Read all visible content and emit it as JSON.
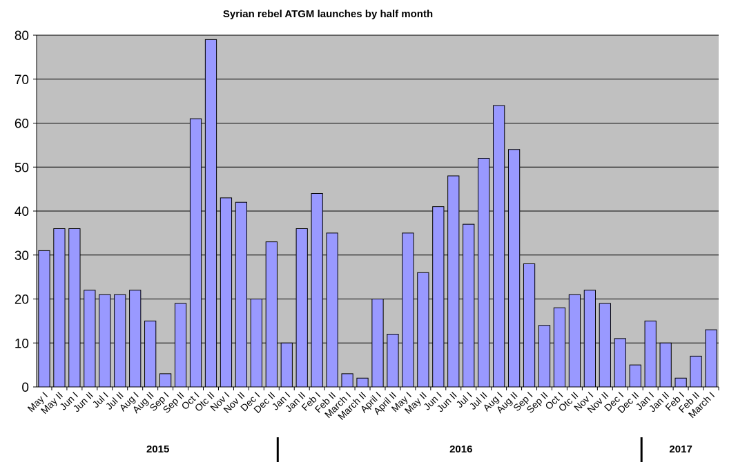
{
  "chart_data": {
    "type": "bar",
    "title": "Syrian rebel ATGM launches by half month",
    "xlabel": "",
    "ylabel": "",
    "ylim": [
      0,
      80
    ],
    "yticks": [
      0,
      10,
      20,
      30,
      40,
      50,
      60,
      70,
      80
    ],
    "grid": true,
    "colors": {
      "bar": "#9999ff",
      "plot_bg": "#c0c0c0",
      "bar_edge": "#000000"
    },
    "categories": [
      "May I",
      "May II",
      "Jun I",
      "Jun II",
      "Jul I",
      "Jul II",
      "Aug I",
      "Aug II",
      "Sep I",
      "Sep II",
      "Oct I",
      "Otc II",
      "Nov I",
      "Nov II",
      "Dec I",
      "Dec II",
      "Jan I",
      "Jan II",
      "Feb I",
      "Feb II",
      "March I",
      "March II",
      "April I",
      "April II",
      "May I",
      "May II",
      "Jun I",
      "Jun II",
      "Jul I",
      "Jul II",
      "Aug I",
      "Aug II",
      "Sep I",
      "Sep II",
      "Oct I",
      "Otc II",
      "Nov I",
      "Nov II",
      "Dec I",
      "Dec II",
      "Jan I",
      "Jan II",
      "Feb I",
      "Feb II",
      "March I"
    ],
    "values": [
      31,
      36,
      36,
      22,
      21,
      21,
      22,
      15,
      3,
      19,
      61,
      79,
      43,
      42,
      20,
      33,
      10,
      36,
      44,
      35,
      3,
      2,
      20,
      12,
      35,
      26,
      41,
      48,
      37,
      52,
      64,
      54,
      28,
      14,
      18,
      21,
      22,
      19,
      11,
      5,
      15,
      10,
      2,
      7,
      13
    ],
    "groups": [
      {
        "label": "2015",
        "start": 0,
        "end": 15
      },
      {
        "label": "2016",
        "start": 16,
        "end": 39
      },
      {
        "label": "2017",
        "start": 40,
        "end": 44
      }
    ]
  }
}
